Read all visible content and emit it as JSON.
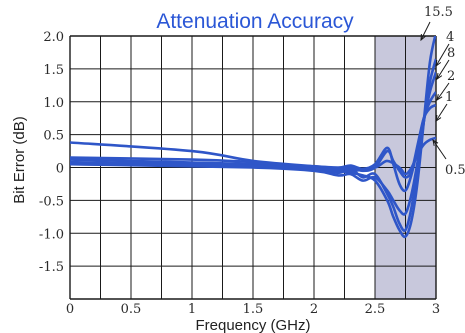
{
  "chart_data": {
    "type": "line",
    "title": "Attenuation Accuracy",
    "xlabel": "Frequency (GHz)",
    "ylabel": "Bit Error (dB)",
    "xlim": [
      0,
      3
    ],
    "ylim": [
      -2,
      2
    ],
    "grid": true,
    "x_ticks": [
      "0",
      "0.5",
      "1",
      "1.5",
      "2",
      "2.5",
      "3"
    ],
    "y_ticks": [
      "2.0",
      "1.5",
      "1.0",
      "0.5",
      "0",
      "-0.5",
      "-1.0",
      "-1.5"
    ],
    "shaded_region": [
      2.5,
      3.0
    ],
    "series_color": "#2f56c8",
    "shade_color": "#c8c8dc",
    "series": [
      {
        "name": "15.5",
        "x": [
          0,
          1.5,
          2.0,
          2.2,
          2.3,
          2.4,
          2.5,
          2.6,
          2.65,
          2.7,
          2.75,
          2.8,
          2.85,
          2.9,
          2.95,
          3.0
        ],
        "y": [
          0.12,
          0.05,
          -0.02,
          -0.05,
          -0.08,
          -0.12,
          -0.2,
          -0.5,
          -0.75,
          -0.95,
          -1.05,
          -0.8,
          -0.2,
          0.7,
          1.6,
          2.05
        ]
      },
      {
        "name": "4",
        "x": [
          0,
          1.5,
          2.0,
          2.2,
          2.3,
          2.4,
          2.5,
          2.6,
          2.65,
          2.7,
          2.75,
          2.8,
          2.85,
          2.9,
          2.95,
          3.0
        ],
        "y": [
          0.08,
          0.03,
          -0.02,
          -0.08,
          -0.02,
          -0.15,
          -0.1,
          -0.4,
          -0.6,
          -0.85,
          -0.95,
          -0.6,
          0.0,
          0.7,
          1.3,
          1.65
        ]
      },
      {
        "name": "8",
        "x": [
          0,
          1.5,
          2.0,
          2.2,
          2.3,
          2.4,
          2.5,
          2.6,
          2.65,
          2.7,
          2.75,
          2.8,
          2.85,
          2.9,
          2.95,
          3.0
        ],
        "y": [
          0.05,
          0.0,
          -0.05,
          -0.12,
          -0.1,
          -0.2,
          -0.15,
          -0.35,
          -0.5,
          -0.65,
          -0.7,
          -0.4,
          0.1,
          0.7,
          1.15,
          1.45
        ]
      },
      {
        "name": "2",
        "x": [
          0,
          1.0,
          1.5,
          2.0,
          2.2,
          2.3,
          2.4,
          2.5,
          2.6,
          2.65,
          2.7,
          2.75,
          2.8,
          2.85,
          2.9,
          2.95,
          3.0
        ],
        "y": [
          0.38,
          0.25,
          0.1,
          0.02,
          0.0,
          0.03,
          -0.02,
          0.05,
          0.3,
          0.05,
          -0.25,
          -0.35,
          -0.1,
          0.3,
          0.75,
          1.0,
          1.15
        ]
      },
      {
        "name": "1",
        "x": [
          0,
          1.0,
          1.5,
          2.0,
          2.2,
          2.3,
          2.4,
          2.5,
          2.6,
          2.65,
          2.7,
          2.75,
          2.8,
          2.85,
          2.9,
          2.95,
          3.0
        ],
        "y": [
          0.15,
          0.12,
          0.08,
          0.0,
          -0.02,
          0.0,
          -0.05,
          0.0,
          0.25,
          0.1,
          -0.05,
          -0.15,
          -0.05,
          0.35,
          0.75,
          0.9,
          0.95
        ]
      },
      {
        "name": "0.5",
        "x": [
          0,
          1.5,
          2.0,
          2.3,
          2.5,
          2.6,
          2.7,
          2.75,
          2.8,
          2.85,
          2.9,
          2.95,
          3.0
        ],
        "y": [
          0.05,
          0.02,
          -0.02,
          -0.05,
          0.0,
          0.1,
          0.0,
          -0.1,
          0.0,
          0.2,
          0.35,
          0.42,
          0.45
        ]
      }
    ],
    "annotations": [
      "15.5",
      "4",
      "8",
      "2",
      "1",
      "0.5"
    ]
  }
}
